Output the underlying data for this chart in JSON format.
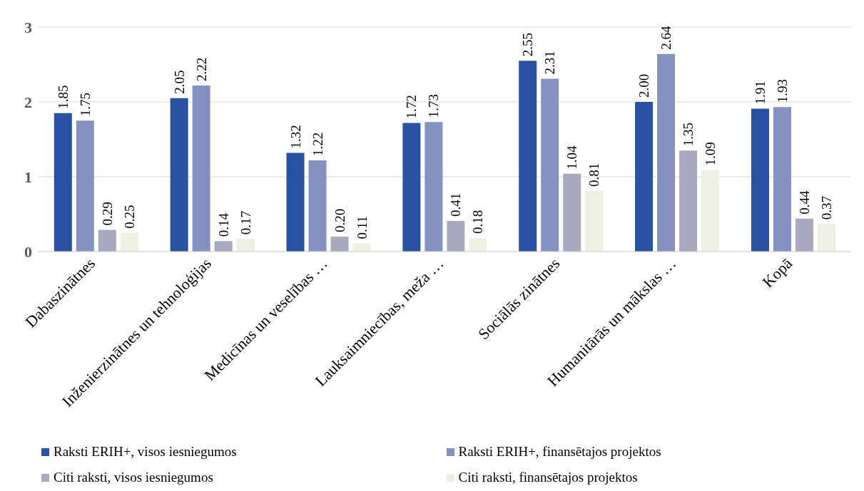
{
  "chart_data": {
    "type": "bar",
    "categories": [
      "Dabaszinātnes",
      "Inženierzinātnes un tehnoloģijas",
      "Medicīnas un veselības …",
      "Lauksaimniecības, meža …",
      "Sociālās zinātnes",
      "Humanitārās un mākslas …",
      "Kopā"
    ],
    "series": [
      {
        "name": "Raksti ERIH+, visos iesniegumos",
        "color": "#2952a3",
        "values": [
          1.85,
          2.05,
          1.32,
          1.72,
          2.55,
          2.0,
          1.91
        ],
        "value_labels": [
          "1.85",
          "2.05",
          "1.32",
          "1.72",
          "2.55",
          "2.00",
          "1.91"
        ]
      },
      {
        "name": "Raksti ERIH+, finansētajos projektos",
        "color": "#8591c1",
        "values": [
          1.75,
          2.22,
          1.22,
          1.73,
          2.31,
          2.64,
          1.93
        ],
        "value_labels": [
          "1.75",
          "2.22",
          "1.22",
          "1.73",
          "2.31",
          "2.64",
          "1.93"
        ]
      },
      {
        "name": "Citi raksti, visos iesniegumos",
        "color": "#a9a9bf",
        "values": [
          0.29,
          0.14,
          0.2,
          0.41,
          1.04,
          1.35,
          0.44
        ],
        "value_labels": [
          "0.29",
          "0.14",
          "0.20",
          "0.41",
          "1.04",
          "1.35",
          "0.44"
        ]
      },
      {
        "name": "Citi raksti, finansētajos projektos",
        "color": "#eef0e3",
        "values": [
          0.25,
          0.17,
          0.11,
          0.18,
          0.81,
          1.09,
          0.37
        ],
        "value_labels": [
          "0.25",
          "0.17",
          "0.11",
          "0.18",
          "0.81",
          "1.09",
          "0.37"
        ]
      }
    ],
    "ylim": [
      0,
      3
    ],
    "yticks": [
      0,
      1,
      2,
      3
    ],
    "grid": "y",
    "legend": "bottom"
  }
}
